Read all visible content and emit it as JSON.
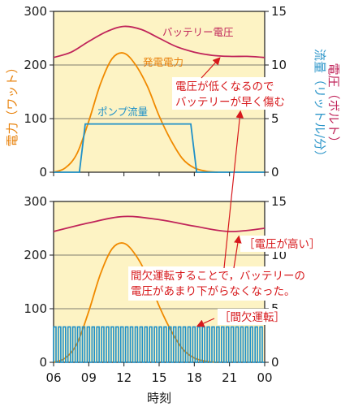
{
  "colors": {
    "plot_bg": "#fdf3c4",
    "voltage": "#c0245a",
    "power": "#f08a00",
    "pump": "#1e90c8",
    "annotation": "#d7191c",
    "axis_left": "#e8820c",
    "axis_right_flow": "#2b95c9",
    "axis_right_voltage": "#c0245a"
  },
  "xaxis": {
    "label": "時刻",
    "ticks": [
      "06",
      "09",
      "12",
      "15",
      "18",
      "21",
      "00"
    ],
    "range": [
      6,
      24
    ]
  },
  "yaxis_left": {
    "label": "電力（ワット）",
    "ticks": [
      "0",
      "100",
      "200",
      "300"
    ],
    "range": [
      0,
      300
    ]
  },
  "yaxis_right": {
    "label_flow": "流量（リットル/分）",
    "label_voltage": "電圧（ボルト）",
    "ticks": [
      "0",
      "5",
      "10",
      "15"
    ],
    "range": [
      0,
      15
    ]
  },
  "chart_data": [
    {
      "type": "line",
      "panel": "top",
      "series": [
        {
          "name": "バッテリー電圧",
          "axis": "right",
          "x": [
            6,
            7.5,
            9,
            10.5,
            12,
            13.5,
            15,
            16.5,
            18,
            19.5,
            21,
            22.5,
            24
          ],
          "values": [
            10.7,
            11.2,
            12.2,
            13.1,
            13.6,
            13.3,
            12.5,
            11.7,
            11.2,
            10.9,
            10.8,
            10.8,
            10.7
          ]
        },
        {
          "name": "発電電力",
          "axis": "left",
          "x": [
            6,
            7,
            8,
            9,
            10,
            11,
            12,
            13,
            14,
            15,
            16,
            17,
            18,
            19,
            20
          ],
          "values": [
            0,
            8,
            35,
            95,
            165,
            212,
            222,
            200,
            160,
            105,
            60,
            25,
            8,
            2,
            0
          ]
        },
        {
          "name": "ポンプ流量",
          "axis": "right",
          "x": [
            6,
            8.2,
            8.7,
            17.7,
            18.2,
            24
          ],
          "values": [
            0,
            0,
            4.5,
            4.5,
            0,
            0
          ]
        }
      ],
      "annotations": [
        "電圧が低くなるので",
        "バッテリーが早く傷む"
      ]
    },
    {
      "type": "line",
      "panel": "bottom",
      "series": [
        {
          "name": "バッテリー電圧",
          "axis": "right",
          "x": [
            6,
            9,
            12,
            15,
            18,
            21,
            24
          ],
          "values": [
            12.2,
            13.0,
            13.6,
            13.3,
            12.7,
            12.2,
            12.5
          ]
        },
        {
          "name": "発電電力",
          "axis": "left",
          "x": [
            6,
            7,
            8,
            9,
            10,
            11,
            12,
            13,
            14,
            15,
            16,
            17,
            18,
            19,
            20
          ],
          "values": [
            0,
            8,
            35,
            95,
            165,
            212,
            222,
            200,
            160,
            105,
            60,
            25,
            8,
            2,
            0
          ]
        },
        {
          "name": "ポンプ流量",
          "axis": "right",
          "pattern": "intermittent",
          "on_value": 3.3,
          "pulses": 44,
          "x_range": [
            6,
            24
          ]
        }
      ],
      "annotations": [
        "［電圧が高い］",
        "間欠運転することで，バッテリーの",
        "電圧があまり下がらなくなった。",
        "［間欠運転］"
      ]
    }
  ]
}
